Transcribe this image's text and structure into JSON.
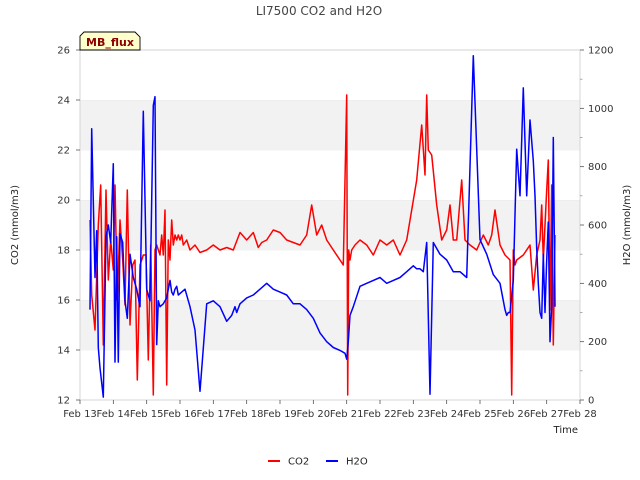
{
  "badge": "MB_flux",
  "chart_data": {
    "type": "line",
    "title": "LI7500 CO2 and H2O",
    "xlabel": "Time",
    "ylabel_left": "CO2 (mmol/m3)",
    "ylabel_right": "H2O (mmol/m3)",
    "xlim": [
      13,
      28
    ],
    "ylim_left": [
      12,
      26
    ],
    "ylim_right": [
      0,
      1200
    ],
    "x_ticks": [
      13,
      14,
      15,
      16,
      17,
      18,
      19,
      20,
      21,
      22,
      23,
      24,
      25,
      26,
      27,
      28
    ],
    "x_tick_labels": [
      "Feb 13",
      "Feb 14",
      "Feb 15",
      "Feb 16",
      "Feb 17",
      "Feb 18",
      "Feb 19",
      "Feb 20",
      "Feb 21",
      "Feb 22",
      "Feb 23",
      "Feb 24",
      "Feb 25",
      "Feb 26",
      "Feb 27",
      "Feb 28"
    ],
    "y_left_ticks": [
      12,
      14,
      16,
      18,
      20,
      22,
      24,
      26
    ],
    "y_right_ticks": [
      0,
      200,
      400,
      600,
      800,
      1000,
      1200
    ],
    "grid": "horizontal alternating bands",
    "legend_position": "bottom-center",
    "series": [
      {
        "name": "CO2",
        "axis": "left",
        "color": "#ff0000",
        "x": [
          13.3,
          13.35,
          13.45,
          13.55,
          13.62,
          13.7,
          13.78,
          13.85,
          13.92,
          14.0,
          14.05,
          14.12,
          14.2,
          14.28,
          14.35,
          14.42,
          14.5,
          14.58,
          14.65,
          14.72,
          14.8,
          14.85,
          14.9,
          14.98,
          15.05,
          15.12,
          15.2,
          15.25,
          15.3,
          15.4,
          15.45,
          15.5,
          15.55,
          15.6,
          15.65,
          15.7,
          15.75,
          15.8,
          15.85,
          15.9,
          15.95,
          16.0,
          16.05,
          16.1,
          16.2,
          16.3,
          16.45,
          16.6,
          16.8,
          17.0,
          17.2,
          17.4,
          17.6,
          17.8,
          18.0,
          18.2,
          18.35,
          18.45,
          18.6,
          18.8,
          19.0,
          19.2,
          19.4,
          19.6,
          19.8,
          19.95,
          20.1,
          20.25,
          20.4,
          20.6,
          20.8,
          20.9,
          21.0,
          21.03,
          21.06,
          21.1,
          21.15,
          21.25,
          21.4,
          21.6,
          21.8,
          22.0,
          22.2,
          22.4,
          22.6,
          22.8,
          22.95,
          23.1,
          23.25,
          23.35,
          23.4,
          23.45,
          23.55,
          23.7,
          23.85,
          24.0,
          24.1,
          24.2,
          24.3,
          24.45,
          24.55,
          24.7,
          24.9,
          25.1,
          25.25,
          25.35,
          25.45,
          25.6,
          25.75,
          25.9,
          25.95,
          26.0,
          26.05,
          26.1,
          26.3,
          26.5,
          26.6,
          26.7,
          26.8,
          26.85,
          26.9,
          27.0,
          27.05,
          27.1,
          27.15,
          27.2,
          27.25
        ],
        "values": [
          19.2,
          16.2,
          14.8,
          19.0,
          20.6,
          14.2,
          20.4,
          16.8,
          18.4,
          17.2,
          20.6,
          16.0,
          19.2,
          17.6,
          15.8,
          20.4,
          15.0,
          17.4,
          17.6,
          12.8,
          17.4,
          17.6,
          17.8,
          17.8,
          13.6,
          18.2,
          12.2,
          18.0,
          18.2,
          17.8,
          18.6,
          17.8,
          19.6,
          12.6,
          18.4,
          17.6,
          19.2,
          18.2,
          18.6,
          18.4,
          18.6,
          18.4,
          18.6,
          18.2,
          18.4,
          18.0,
          18.2,
          17.9,
          18.0,
          18.2,
          18.0,
          18.1,
          18.0,
          18.7,
          18.4,
          18.7,
          18.1,
          18.3,
          18.4,
          18.8,
          18.7,
          18.4,
          18.3,
          18.2,
          18.6,
          19.8,
          18.6,
          19.0,
          18.4,
          18.0,
          17.6,
          17.4,
          24.2,
          12.2,
          18.0,
          17.6,
          18.0,
          18.2,
          18.4,
          18.2,
          17.8,
          18.4,
          18.2,
          18.4,
          17.8,
          18.4,
          19.6,
          20.8,
          23.0,
          21.0,
          24.2,
          22.0,
          21.8,
          19.8,
          18.4,
          18.8,
          19.8,
          18.4,
          18.4,
          20.8,
          18.4,
          18.2,
          18.0,
          18.6,
          18.2,
          18.6,
          19.6,
          18.2,
          17.8,
          17.6,
          12.2,
          18.0,
          17.4,
          17.6,
          17.8,
          18.2,
          16.4,
          17.8,
          18.4,
          19.8,
          17.6,
          20.4,
          21.6,
          15.6,
          20.6,
          14.2,
          18.6
        ]
      },
      {
        "name": "H2O",
        "axis": "right",
        "color": "#0000ff",
        "x": [
          13.3,
          13.35,
          13.45,
          13.5,
          13.55,
          13.6,
          13.7,
          13.78,
          13.85,
          13.92,
          14.0,
          14.05,
          14.1,
          14.15,
          14.2,
          14.28,
          14.35,
          14.42,
          14.5,
          14.6,
          14.7,
          14.8,
          14.9,
          15.0,
          15.1,
          15.2,
          15.25,
          15.3,
          15.35,
          15.4,
          15.5,
          15.6,
          15.7,
          15.75,
          15.8,
          15.85,
          15.9,
          15.95,
          16.05,
          16.15,
          16.3,
          16.45,
          16.6,
          16.8,
          17.0,
          17.2,
          17.4,
          17.55,
          17.65,
          17.7,
          17.8,
          18.0,
          18.2,
          18.4,
          18.6,
          18.8,
          19.0,
          19.2,
          19.4,
          19.6,
          19.8,
          20.0,
          20.2,
          20.4,
          20.6,
          20.8,
          20.95,
          21.0,
          21.05,
          21.1,
          21.2,
          21.4,
          21.6,
          21.8,
          22.0,
          22.2,
          22.4,
          22.6,
          22.8,
          23.0,
          23.1,
          23.2,
          23.3,
          23.4,
          23.5,
          23.6,
          23.8,
          24.0,
          24.2,
          24.4,
          24.6,
          24.8,
          25.0,
          25.2,
          25.4,
          25.6,
          25.75,
          25.8,
          25.85,
          25.9,
          26.0,
          26.1,
          26.2,
          26.3,
          26.4,
          26.5,
          26.6,
          26.65,
          26.7,
          26.75,
          26.8,
          26.85,
          26.9,
          26.95,
          27.0,
          27.05,
          27.1,
          27.15,
          27.2,
          27.25
        ],
        "values": [
          310,
          930,
          420,
          580,
          180,
          110,
          10,
          560,
          600,
          540,
          810,
          130,
          560,
          130,
          570,
          540,
          340,
          280,
          500,
          420,
          380,
          320,
          990,
          380,
          340,
          1010,
          1040,
          190,
          340,
          320,
          330,
          350,
          410,
          370,
          360,
          380,
          390,
          360,
          370,
          380,
          320,
          240,
          30,
          330,
          340,
          320,
          270,
          290,
          320,
          300,
          330,
          350,
          360,
          380,
          400,
          380,
          370,
          360,
          330,
          330,
          310,
          280,
          230,
          200,
          180,
          170,
          160,
          140,
          200,
          290,
          320,
          390,
          400,
          410,
          420,
          400,
          410,
          420,
          440,
          460,
          450,
          450,
          440,
          540,
          20,
          540,
          500,
          480,
          440,
          440,
          420,
          1180,
          550,
          500,
          430,
          400,
          310,
          290,
          300,
          300,
          410,
          860,
          700,
          1070,
          700,
          960,
          820,
          700,
          520,
          400,
          300,
          280,
          500,
          300,
          480,
          610,
          200,
          320,
          900,
          320
        ]
      }
    ]
  }
}
